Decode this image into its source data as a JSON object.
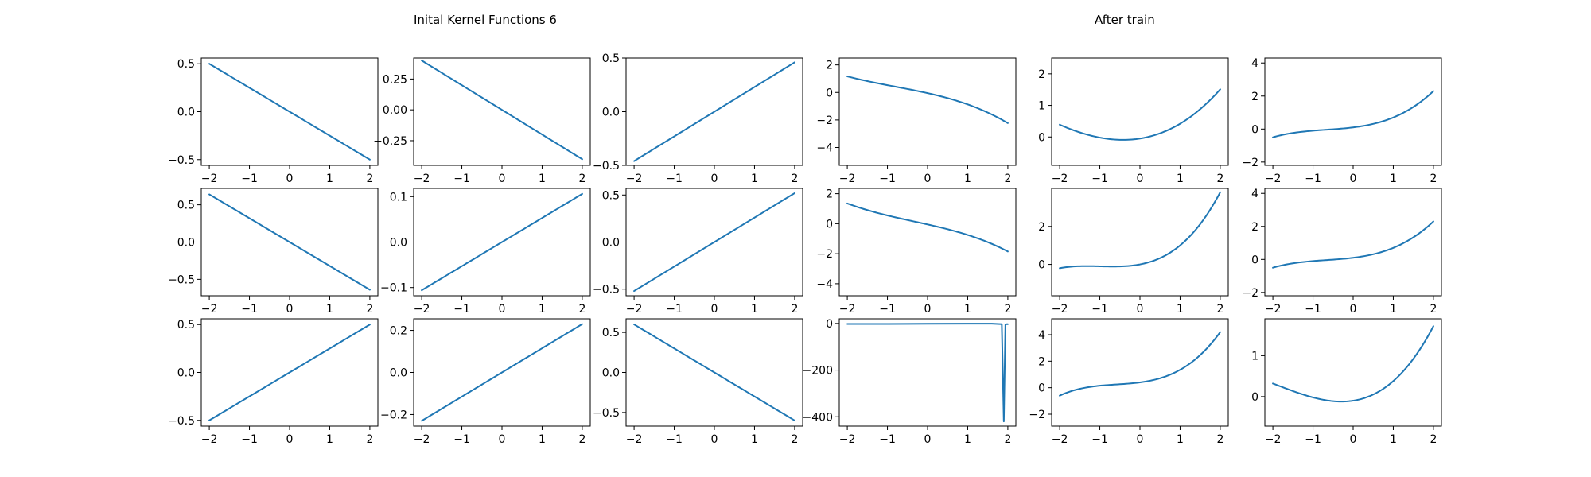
{
  "titles": {
    "left": "Inital Kernel Functions 6",
    "right": "After train"
  },
  "colors": {
    "line": "#1f77b4"
  },
  "chart_data": [
    {
      "type": "line",
      "func": "linear",
      "a": -0.25,
      "xlim": [
        -2.2,
        2.2
      ],
      "ylim": [
        -0.56,
        0.56
      ],
      "xticks": [
        -2,
        -1,
        0,
        1,
        2
      ],
      "yticks": [
        0.5,
        0.0,
        -0.5
      ],
      "ytick_labels": [
        "0.5",
        "0.0",
        "−0.5"
      ]
    },
    {
      "type": "line",
      "func": "linear",
      "a": -0.2,
      "xlim": [
        -2.2,
        2.2
      ],
      "ylim": [
        -0.45,
        0.42
      ],
      "xticks": [
        -2,
        -1,
        0,
        1,
        2
      ],
      "yticks": [
        0.25,
        0.0,
        -0.25
      ],
      "ytick_labels": [
        "0.25",
        "0.00",
        "−0.25"
      ]
    },
    {
      "type": "line",
      "func": "linear",
      "a": 0.23,
      "xlim": [
        -2.2,
        2.2
      ],
      "ylim": [
        -0.5,
        0.5
      ],
      "xticks": [
        -2,
        -1,
        0,
        1,
        2
      ],
      "yticks": [
        0.5,
        0.0,
        -0.5
      ],
      "ytick_labels": [
        "0.5",
        "0.0",
        "−0.5"
      ]
    },
    {
      "type": "line",
      "func": "cubic",
      "a": -0.05,
      "b": -0.65,
      "c": -0.12,
      "d": -0.05,
      "xlim": [
        -2.2,
        2.2
      ],
      "ylim": [
        -5.3,
        2.5
      ],
      "xticks": [
        -2,
        -1,
        0,
        1,
        2
      ],
      "yticks": [
        2,
        0,
        -2,
        -4
      ],
      "ytick_labels": [
        "2",
        "0",
        "−2",
        "−4"
      ]
    },
    {
      "type": "line",
      "func": "cubic",
      "a": -0.05,
      "b": 0.2,
      "c": 0.25,
      "d": 0.02,
      "xlim": [
        -2.2,
        2.2
      ],
      "ylim": [
        -0.9,
        2.5
      ],
      "xticks": [
        -2,
        -1,
        0,
        1,
        2
      ],
      "yticks": [
        2,
        1,
        0
      ],
      "ytick_labels": [
        "2",
        "1",
        "0"
      ]
    },
    {
      "type": "line",
      "func": "cubic",
      "a": 0.1,
      "b": 0.3,
      "c": 0.2,
      "d": 0.1,
      "xlim": [
        -2.2,
        2.2
      ],
      "ylim": [
        -2.2,
        4.3
      ],
      "xticks": [
        -2,
        -1,
        0,
        1,
        2
      ],
      "yticks": [
        4,
        2,
        0,
        -2
      ],
      "ytick_labels": [
        "4",
        "2",
        "0",
        "−2"
      ]
    },
    {
      "type": "line",
      "func": "linear",
      "a": -0.32,
      "xlim": [
        -2.2,
        2.2
      ],
      "ylim": [
        -0.72,
        0.72
      ],
      "xticks": [
        -2,
        -1,
        0,
        1,
        2
      ],
      "yticks": [
        0.5,
        0.0,
        -0.5
      ],
      "ytick_labels": [
        "0.5",
        "0.0",
        "−0.5"
      ]
    },
    {
      "type": "line",
      "func": "linear",
      "a": 0.053,
      "xlim": [
        -2.2,
        2.2
      ],
      "ylim": [
        -0.118,
        0.118
      ],
      "xticks": [
        -2,
        -1,
        0,
        1,
        2
      ],
      "yticks": [
        0.1,
        0.0,
        -0.1
      ],
      "ytick_labels": [
        "0.1",
        "0.0",
        "−0.1"
      ]
    },
    {
      "type": "line",
      "func": "linear",
      "a": 0.26,
      "xlim": [
        -2.2,
        2.2
      ],
      "ylim": [
        -0.57,
        0.57
      ],
      "xticks": [
        -2,
        -1,
        0,
        1,
        2
      ],
      "yticks": [
        0.5,
        0.0,
        -0.5
      ],
      "ytick_labels": [
        "0.5",
        "0.0",
        "−0.5"
      ]
    },
    {
      "type": "line",
      "func": "cubic",
      "a": -0.05,
      "b": -0.6,
      "c": -0.05,
      "d": -0.05,
      "xlim": [
        -2.2,
        2.2
      ],
      "ylim": [
        -4.8,
        2.35
      ],
      "xticks": [
        -2,
        -1,
        0,
        1,
        2
      ],
      "yticks": [
        2,
        0,
        -2,
        -4
      ],
      "ytick_labels": [
        "2",
        "0",
        "−2",
        "−4"
      ]
    },
    {
      "type": "line",
      "func": "cubic",
      "a": 0.0,
      "b": 0.4,
      "c": 0.45,
      "d": 0.15,
      "xlim": [
        -2.2,
        2.2
      ],
      "ylim": [
        -1.65,
        4.0
      ],
      "xticks": [
        -2,
        -1,
        0,
        1,
        2
      ],
      "yticks": [
        2,
        0
      ],
      "ytick_labels": [
        "2",
        "0"
      ]
    },
    {
      "type": "line",
      "func": "cubic",
      "a": 0.1,
      "b": 0.3,
      "c": 0.2,
      "d": 0.1,
      "xlim": [
        -2.2,
        2.2
      ],
      "ylim": [
        -2.2,
        4.3
      ],
      "xticks": [
        -2,
        -1,
        0,
        1,
        2
      ],
      "yticks": [
        4,
        2,
        0,
        -2
      ],
      "ytick_labels": [
        "4",
        "2",
        "0",
        "−2"
      ]
    },
    {
      "type": "line",
      "func": "linear",
      "a": 0.25,
      "xlim": [
        -2.2,
        2.2
      ],
      "ylim": [
        -0.56,
        0.56
      ],
      "xticks": [
        -2,
        -1,
        0,
        1,
        2
      ],
      "yticks": [
        0.5,
        0.0,
        -0.5
      ],
      "ytick_labels": [
        "0.5",
        "0.0",
        "−0.5"
      ]
    },
    {
      "type": "line",
      "func": "linear",
      "a": 0.115,
      "xlim": [
        -2.2,
        2.2
      ],
      "ylim": [
        -0.255,
        0.255
      ],
      "xticks": [
        -2,
        -1,
        0,
        1,
        2
      ],
      "yticks": [
        0.2,
        0.0,
        -0.2
      ],
      "ytick_labels": [
        "0.2",
        "0.0",
        "−0.2"
      ]
    },
    {
      "type": "line",
      "func": "linear",
      "a": -0.3,
      "xlim": [
        -2.2,
        2.2
      ],
      "ylim": [
        -0.67,
        0.67
      ],
      "xticks": [
        -2,
        -1,
        0,
        1,
        2
      ],
      "yticks": [
        0.5,
        0.0,
        -0.5
      ],
      "ytick_labels": [
        "0.5",
        "0.0",
        "−0.5"
      ]
    },
    {
      "type": "line",
      "func": "spike",
      "x": [
        -2,
        -1,
        0,
        1,
        1.6,
        1.85,
        1.9,
        1.94,
        1.97,
        2
      ],
      "y": [
        -2,
        -2,
        -1.5,
        -1,
        -1,
        -3,
        -420,
        -5,
        -3,
        -3
      ],
      "xlim": [
        -2.2,
        2.2
      ],
      "ylim": [
        -440,
        20
      ],
      "xticks": [
        -2,
        -1,
        0,
        1,
        2
      ],
      "yticks": [
        0,
        -200,
        -400
      ],
      "ytick_labels": [
        "0",
        "−200",
        "−400"
      ]
    },
    {
      "type": "line",
      "func": "cubic",
      "a": 0.4,
      "b": 0.4,
      "c": 0.35,
      "d": 0.2,
      "xlim": [
        -2.2,
        2.2
      ],
      "ylim": [
        -2.9,
        5.2
      ],
      "xticks": [
        -2,
        -1,
        0,
        1,
        2
      ],
      "yticks": [
        4,
        2,
        0,
        -2
      ],
      "ytick_labels": [
        "4",
        "2",
        "0",
        "−2"
      ]
    },
    {
      "type": "line",
      "func": "cubic",
      "a": -0.1,
      "b": 0.15,
      "c": 0.28,
      "d": 0.05,
      "xlim": [
        -2.2,
        2.2
      ],
      "ylim": [
        -0.72,
        1.9
      ],
      "xticks": [
        -2,
        -1,
        0,
        1,
        2
      ],
      "yticks": [
        1,
        0
      ],
      "ytick_labels": [
        "1",
        "0"
      ]
    }
  ]
}
